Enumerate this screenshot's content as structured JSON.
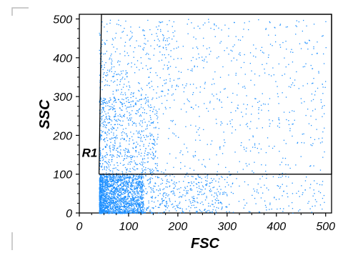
{
  "chart_data": {
    "type": "scatter",
    "title": "",
    "xlabel": "FSC",
    "ylabel": "SSC",
    "xlim": [
      0,
      512
    ],
    "ylim": [
      0,
      512
    ],
    "x_ticks": [
      "0",
      "100",
      "200",
      "300",
      "400",
      "500"
    ],
    "y_ticks": [
      "0",
      "100",
      "200",
      "300",
      "400",
      "500"
    ],
    "grid": false,
    "point_color": "#1e90ff",
    "gate": {
      "label": "R1",
      "polygon": [
        [
          40,
          100
        ],
        [
          512,
          100
        ],
        [
          512,
          512
        ],
        [
          45,
          512
        ]
      ]
    },
    "density_regions": [
      {
        "x_range": [
          40,
          130
        ],
        "y_range": [
          0,
          100
        ],
        "count": 1500
      },
      {
        "x_range": [
          40,
          300
        ],
        "y_range": [
          0,
          100
        ],
        "count": 900
      },
      {
        "x_range": [
          300,
          500
        ],
        "y_range": [
          0,
          100
        ],
        "count": 120
      },
      {
        "x_range": [
          40,
          160
        ],
        "y_range": [
          100,
          300
        ],
        "count": 700
      },
      {
        "x_range": [
          40,
          200
        ],
        "y_range": [
          300,
          500
        ],
        "count": 300
      },
      {
        "x_range": [
          160,
          500
        ],
        "y_range": [
          100,
          500
        ],
        "count": 550
      }
    ]
  }
}
